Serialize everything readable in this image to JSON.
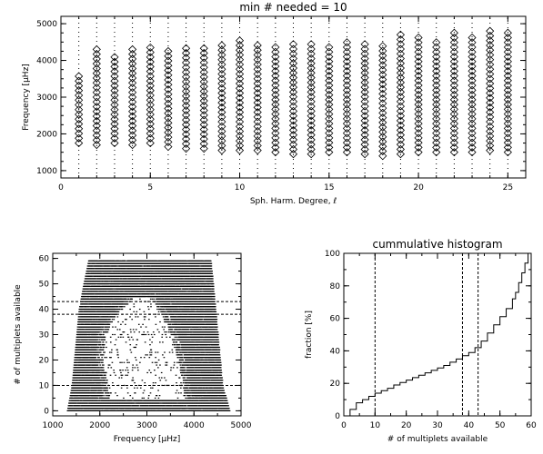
{
  "chart_data": [
    {
      "type": "scatter",
      "title": "min # needed = 10",
      "xlabel": "Sph. Harm. Degree, ℓ",
      "ylabel": "Frequency [μHz]",
      "xlim": [
        0,
        26
      ],
      "ylim": [
        800,
        5200
      ],
      "xticks": [
        0,
        5,
        10,
        15,
        20,
        25
      ],
      "yticks": [
        1000,
        2000,
        3000,
        4000,
        5000
      ],
      "grid": false,
      "series": [
        {
          "marker": "diamond",
          "points_per_degree": [
            {
              "l": 1,
              "fmin": 1750,
              "fmax": 3650
            },
            {
              "l": 2,
              "fmin": 1700,
              "fmax": 4400
            },
            {
              "l": 3,
              "fmin": 1750,
              "fmax": 4150
            },
            {
              "l": 4,
              "fmin": 1700,
              "fmax": 4400
            },
            {
              "l": 5,
              "fmin": 1750,
              "fmax": 4400
            },
            {
              "l": 6,
              "fmin": 1650,
              "fmax": 4350
            },
            {
              "l": 7,
              "fmin": 1600,
              "fmax": 4400
            },
            {
              "l": 8,
              "fmin": 1600,
              "fmax": 4400
            },
            {
              "l": 9,
              "fmin": 1550,
              "fmax": 4450
            },
            {
              "l": 10,
              "fmin": 1550,
              "fmax": 4550
            },
            {
              "l": 11,
              "fmin": 1550,
              "fmax": 4450
            },
            {
              "l": 12,
              "fmin": 1500,
              "fmax": 4400
            },
            {
              "l": 13,
              "fmin": 1450,
              "fmax": 4550
            },
            {
              "l": 14,
              "fmin": 1450,
              "fmax": 4550
            },
            {
              "l": 15,
              "fmin": 1500,
              "fmax": 4450
            },
            {
              "l": 16,
              "fmin": 1500,
              "fmax": 4550
            },
            {
              "l": 17,
              "fmin": 1450,
              "fmax": 4500
            },
            {
              "l": 18,
              "fmin": 1400,
              "fmax": 4450
            },
            {
              "l": 19,
              "fmin": 1450,
              "fmax": 4700
            },
            {
              "l": 20,
              "fmin": 1500,
              "fmax": 4650
            },
            {
              "l": 21,
              "fmin": 1500,
              "fmax": 4550
            },
            {
              "l": 22,
              "fmin": 1500,
              "fmax": 4750
            },
            {
              "l": 23,
              "fmin": 1500,
              "fmax": 4650
            },
            {
              "l": 24,
              "fmin": 1550,
              "fmax": 4800
            },
            {
              "l": 25,
              "fmin": 1500,
              "fmax": 4750
            }
          ],
          "spacing": 130
        }
      ]
    },
    {
      "type": "scatter",
      "title": "",
      "xlabel": "Frequency [μHz]",
      "ylabel": "# of multiplets available",
      "xlim": [
        1000,
        5000
      ],
      "ylim": [
        -2,
        62
      ],
      "xticks": [
        1000,
        2000,
        3000,
        4000,
        5000
      ],
      "yticks": [
        0,
        10,
        20,
        30,
        40,
        50,
        60
      ],
      "hlines": [
        10,
        38,
        43
      ],
      "profile": [
        {
          "y": 0,
          "x_left": 1300,
          "x_right": 4750
        },
        {
          "y": 10,
          "x_left": 1400,
          "x_right": 4600
        },
        {
          "y": 20,
          "x_left": 1450,
          "x_right": 4550
        },
        {
          "y": 30,
          "x_left": 1500,
          "x_right": 4500
        },
        {
          "y": 40,
          "x_left": 1550,
          "x_right": 4450
        },
        {
          "y": 50,
          "x_left": 1650,
          "x_right": 4400
        },
        {
          "y": 59,
          "x_left": 1750,
          "x_right": 4350
        }
      ],
      "void": [
        {
          "y": 5,
          "x_left": 2200,
          "x_right": 3800
        },
        {
          "y": 20,
          "x_left": 2050,
          "x_right": 3650
        },
        {
          "y": 30,
          "x_left": 2100,
          "x_right": 3500
        },
        {
          "y": 38,
          "x_left": 2350,
          "x_right": 3300
        },
        {
          "y": 44,
          "x_left": 2700,
          "x_right": 3100
        }
      ]
    },
    {
      "type": "line",
      "title": "cummulative histogram",
      "xlabel": "# of multiplets available",
      "ylabel": "fraction [%]",
      "xlim": [
        0,
        60
      ],
      "ylim": [
        0,
        100
      ],
      "xticks": [
        0,
        10,
        20,
        30,
        40,
        50,
        60
      ],
      "yticks": [
        0,
        20,
        40,
        60,
        80,
        100
      ],
      "vlines": [
        10,
        38,
        43
      ],
      "series": [
        {
          "step": true,
          "x": [
            0,
            2,
            4,
            6,
            8,
            10,
            12,
            14,
            16,
            18,
            20,
            22,
            24,
            26,
            28,
            30,
            32,
            34,
            36,
            38,
            40,
            42,
            44,
            46,
            48,
            50,
            52,
            54,
            55,
            56,
            57,
            58,
            59
          ],
          "y": [
            0,
            4,
            8,
            10,
            12,
            14,
            15.5,
            17,
            19,
            20.5,
            22,
            23.5,
            25,
            26.5,
            28,
            29.5,
            31,
            33,
            35,
            37,
            39,
            42,
            46,
            51,
            56,
            61,
            66,
            72,
            76,
            82,
            88,
            94,
            100
          ]
        }
      ]
    }
  ]
}
